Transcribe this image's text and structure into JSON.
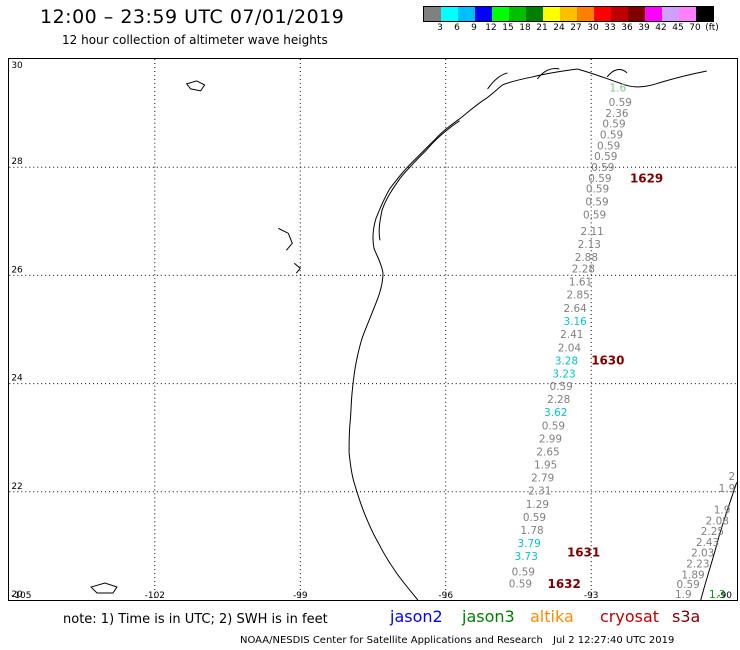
{
  "header": {
    "title": "12:00 – 23:59 UTC 07/01/2019",
    "subtitle": "12 hour collection of altimeter wave heights"
  },
  "legend": {
    "colors": [
      "#808080",
      "#00ffff",
      "#00bfff",
      "#0000ff",
      "#00ff00",
      "#00c000",
      "#008000",
      "#ffff00",
      "#ffc000",
      "#ff8000",
      "#ff0000",
      "#c00000",
      "#800000",
      "#ff00ff",
      "#d0a0ff",
      "#ff80ff",
      "#000000"
    ],
    "ticks": [
      "3",
      "6",
      "9",
      "12",
      "15",
      "18",
      "21",
      "24",
      "27",
      "30",
      "33",
      "36",
      "39",
      "42",
      "45",
      "70",
      "(ft)"
    ]
  },
  "map": {
    "lat_labels": [
      "30",
      "28",
      "26",
      "24",
      "22",
      "20"
    ],
    "lon_labels": [
      "-105",
      "-102",
      "-99",
      "-96",
      "-93",
      "-90"
    ],
    "track_labels": [
      {
        "text": "0.59",
        "lat": 29.13,
        "lon": -92.4,
        "color": "#808080"
      },
      {
        "text": "2.36",
        "lat": 28.93,
        "lon": -92.47,
        "color": "#808080"
      },
      {
        "text": "0.59",
        "lat": 28.73,
        "lon": -92.53,
        "color": "#808080"
      },
      {
        "text": "0.59",
        "lat": 28.53,
        "lon": -92.58,
        "color": "#808080"
      },
      {
        "text": "0.59",
        "lat": 28.33,
        "lon": -92.64,
        "color": "#808080"
      },
      {
        "text": "0.59",
        "lat": 28.13,
        "lon": -92.7,
        "color": "#808080"
      },
      {
        "text": "0.59",
        "lat": 27.93,
        "lon": -92.76,
        "color": "#808080"
      },
      {
        "text": "0.59",
        "lat": 27.73,
        "lon": -92.82,
        "color": "#808080"
      },
      {
        "text": "0.59",
        "lat": 27.53,
        "lon": -92.87,
        "color": "#808080"
      },
      {
        "text": "0.59",
        "lat": 27.29,
        "lon": -92.88,
        "color": "#808080"
      },
      {
        "text": "0.59",
        "lat": 27.05,
        "lon": -92.93,
        "color": "#808080"
      },
      {
        "text": "2.11",
        "lat": 26.75,
        "lon": -92.98,
        "color": "#808080"
      },
      {
        "text": "2.13",
        "lat": 26.51,
        "lon": -93.04,
        "color": "#808080"
      },
      {
        "text": "2.88",
        "lat": 26.27,
        "lon": -93.1,
        "color": "#808080"
      },
      {
        "text": "2.28",
        "lat": 26.05,
        "lon": -93.16,
        "color": "#808080"
      },
      {
        "text": "1.61",
        "lat": 25.81,
        "lon": -93.22,
        "color": "#808080"
      },
      {
        "text": "2.85",
        "lat": 25.57,
        "lon": -93.27,
        "color": "#808080"
      },
      {
        "text": "2.64",
        "lat": 25.32,
        "lon": -93.33,
        "color": "#808080"
      },
      {
        "text": "3.16",
        "lat": 25.08,
        "lon": -93.33,
        "color": "#00c8c8"
      },
      {
        "text": "2.41",
        "lat": 24.84,
        "lon": -93.4,
        "color": "#808080"
      },
      {
        "text": "2.04",
        "lat": 24.59,
        "lon": -93.45,
        "color": "#808080"
      },
      {
        "text": "3.28",
        "lat": 24.35,
        "lon": -93.51,
        "color": "#00c8c8"
      },
      {
        "text": "3.23",
        "lat": 24.11,
        "lon": -93.56,
        "color": "#00c8c8"
      },
      {
        "text": "0.59",
        "lat": 23.88,
        "lon": -93.62,
        "color": "#808080"
      },
      {
        "text": "2.28",
        "lat": 23.64,
        "lon": -93.67,
        "color": "#808080"
      },
      {
        "text": "3.62",
        "lat": 23.4,
        "lon": -93.73,
        "color": "#00c8c8"
      },
      {
        "text": "0.59",
        "lat": 23.15,
        "lon": -93.78,
        "color": "#808080"
      },
      {
        "text": "2.99",
        "lat": 22.91,
        "lon": -93.84,
        "color": "#808080"
      },
      {
        "text": "2.65",
        "lat": 22.67,
        "lon": -93.89,
        "color": "#808080"
      },
      {
        "text": "1.95",
        "lat": 22.43,
        "lon": -93.94,
        "color": "#808080"
      },
      {
        "text": "2.79",
        "lat": 22.19,
        "lon": -94.0,
        "color": "#808080"
      },
      {
        "text": "2.31",
        "lat": 21.95,
        "lon": -94.06,
        "color": "#808080"
      },
      {
        "text": "1.29",
        "lat": 21.7,
        "lon": -94.11,
        "color": "#808080"
      },
      {
        "text": "0.59",
        "lat": 21.46,
        "lon": -94.17,
        "color": "#808080"
      },
      {
        "text": "1.78",
        "lat": 21.22,
        "lon": -94.22,
        "color": "#808080"
      },
      {
        "text": "3.79",
        "lat": 20.98,
        "lon": -94.28,
        "color": "#00c8c8"
      },
      {
        "text": "3.73",
        "lat": 20.74,
        "lon": -94.34,
        "color": "#00c8c8"
      },
      {
        "text": "0.59",
        "lat": 20.45,
        "lon": -94.4,
        "color": "#808080"
      },
      {
        "text": "0.59",
        "lat": 20.23,
        "lon": -94.46,
        "color": "#808080"
      },
      {
        "text": "2",
        "lat": 22.22,
        "lon": -90.1,
        "color": "#808080"
      },
      {
        "text": "1.9",
        "lat": 22.0,
        "lon": -90.2,
        "color": "#808080"
      },
      {
        "text": "1.9",
        "lat": 21.6,
        "lon": -90.3,
        "color": "#808080"
      },
      {
        "text": "2.08",
        "lat": 21.4,
        "lon": -90.4,
        "color": "#808080"
      },
      {
        "text": "2.25",
        "lat": 21.2,
        "lon": -90.5,
        "color": "#808080"
      },
      {
        "text": "2.43",
        "lat": 21.0,
        "lon": -90.6,
        "color": "#808080"
      },
      {
        "text": "2.03",
        "lat": 20.8,
        "lon": -90.7,
        "color": "#808080"
      },
      {
        "text": "2.23",
        "lat": 20.6,
        "lon": -90.8,
        "color": "#808080"
      },
      {
        "text": "1.89",
        "lat": 20.4,
        "lon": -90.9,
        "color": "#808080"
      },
      {
        "text": "0.59",
        "lat": 20.22,
        "lon": -91.0,
        "color": "#808080"
      },
      {
        "text": "1.9",
        "lat": 20.04,
        "lon": -91.1,
        "color": "#808080"
      },
      {
        "text": "1.3",
        "lat": 20.04,
        "lon": -90.4,
        "color": "#00a000"
      },
      {
        "text": "1.6",
        "lat": 29.4,
        "lon": -92.45,
        "color": "#80c080"
      }
    ],
    "time_labels": [
      {
        "text": "1629",
        "lat": 27.72,
        "lon": -92.2,
        "color": "#800000"
      },
      {
        "text": "1630",
        "lat": 24.35,
        "lon": -93.0,
        "color": "#800000"
      },
      {
        "text": "1631",
        "lat": 20.8,
        "lon": -93.5,
        "color": "#800000"
      },
      {
        "text": "1632",
        "lat": 20.22,
        "lon": -93.9,
        "color": "#800000"
      }
    ]
  },
  "footer": {
    "note": "note: 1) Time is in UTC; 2) SWH is in feet",
    "satellites": [
      {
        "name": "jason2",
        "color": "#0000ff"
      },
      {
        "name": "jason3",
        "color": "#008000"
      },
      {
        "name": "altika",
        "color": "#ff8c00"
      },
      {
        "name": "cryosat",
        "color": "#c00000"
      },
      {
        "name": "s3a",
        "color": "#800000"
      }
    ],
    "credit": "NOAA/NESDIS Center for Satellite Applications and Research",
    "timestamp": "Jul  2 12:27:40 UTC 2019"
  }
}
